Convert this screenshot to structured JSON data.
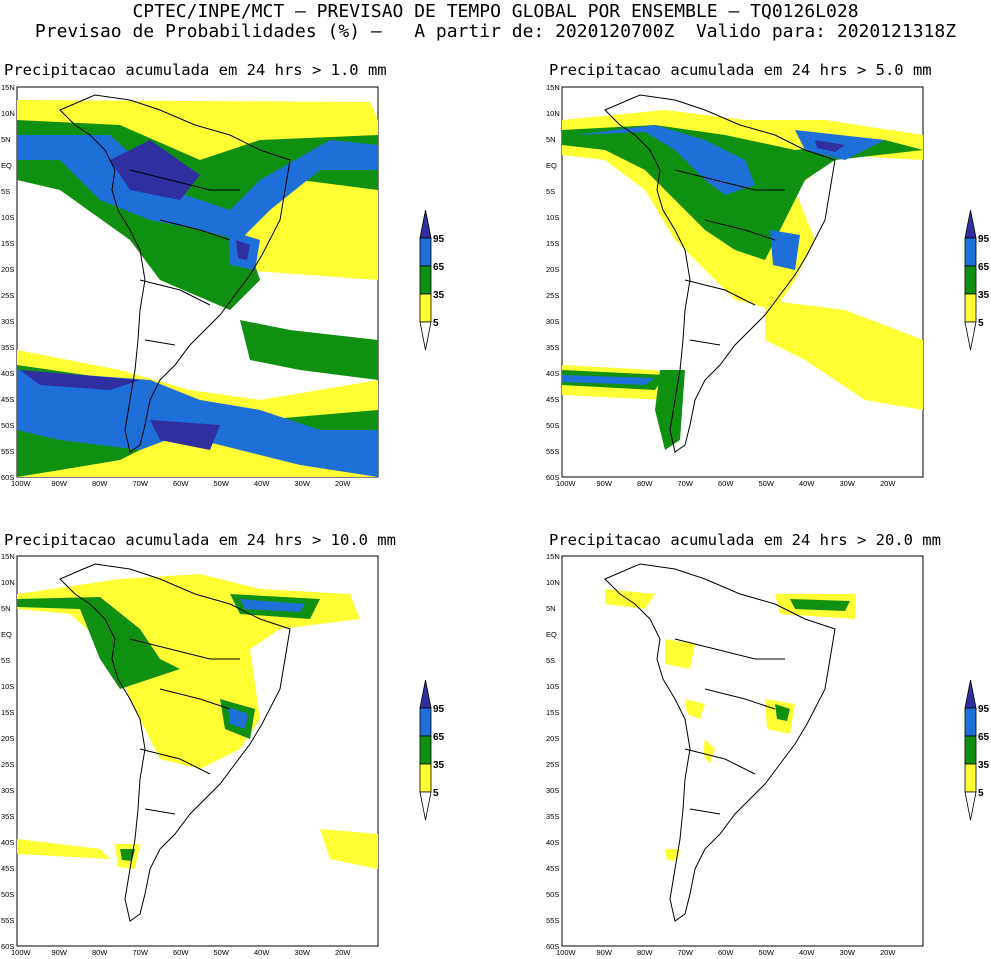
{
  "header": {
    "line1": "CPTEC/INPE/MCT – PREVISAO DE TEMPO GLOBAL POR ENSEMBLE – TQ0126L028",
    "line2": "Previsao de Probabilidades (%) –   A partir de: 2020120700Z  Valido para: 2020121318Z"
  },
  "panels": [
    {
      "title": "Precipitacao acumulada em 24 hrs > 1.0 mm"
    },
    {
      "title": "Precipitacao acumulada em 24 hrs > 5.0 mm"
    },
    {
      "title": "Precipitacao acumulada em 24 hrs > 10.0 mm"
    },
    {
      "title": "Precipitacao acumulada em 24 hrs > 20.0 mm"
    }
  ],
  "axes": {
    "lat_labels": [
      "15N",
      "10N",
      "5N",
      "EQ",
      "5S",
      "10S",
      "15S",
      "20S",
      "25S",
      "30S",
      "35S",
      "40S",
      "45S",
      "50S",
      "55S",
      "60S"
    ],
    "lon_labels": [
      "100W",
      "90W",
      "80W",
      "70W",
      "60W",
      "50W",
      "40W",
      "30W",
      "20W"
    ]
  },
  "colorbar": {
    "labels": [
      "95",
      "65",
      "35",
      "5"
    ],
    "colors": {
      "c95": "#2f2fa0",
      "c65": "#1f6fd8",
      "c35": "#109010",
      "c5": "#ffff33"
    }
  }
}
